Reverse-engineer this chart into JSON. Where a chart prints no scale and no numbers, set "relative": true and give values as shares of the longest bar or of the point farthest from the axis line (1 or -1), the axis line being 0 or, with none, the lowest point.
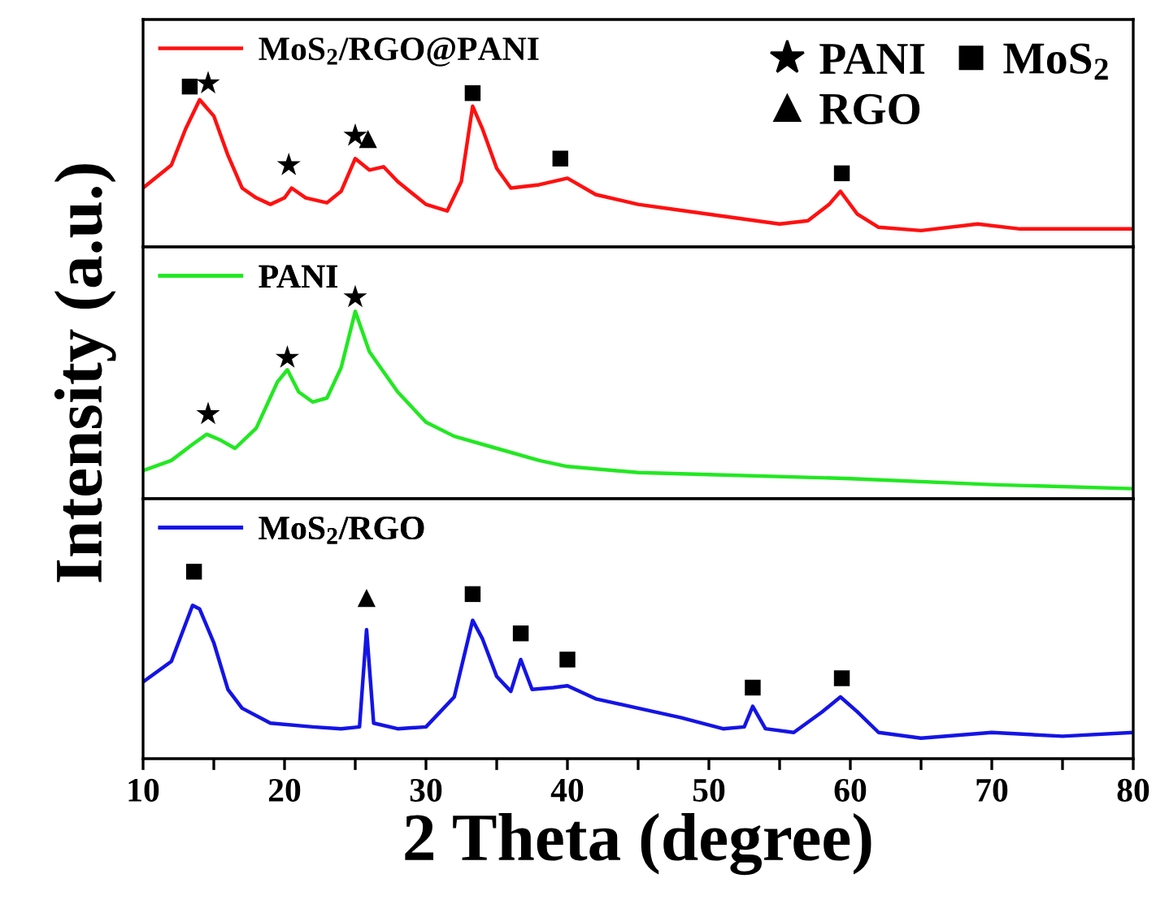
{
  "chart_data": [
    {
      "type": "line",
      "relative": true,
      "xlim": [
        10,
        80
      ],
      "tick_labels": false,
      "legend": "top left",
      "series": [
        {
          "name": "MoS$_{2}$/RGO@PANI",
          "color": "#ff1010",
          "x": [
            10,
            12,
            13,
            14,
            15,
            16,
            17,
            18,
            19,
            20,
            20.5,
            21.5,
            23,
            24,
            25,
            26,
            27,
            28,
            30,
            31.5,
            32.5,
            33.3,
            34,
            35,
            36,
            38,
            40,
            42,
            45,
            50,
            55,
            57,
            58.5,
            59.3,
            60.5,
            62,
            65,
            69,
            72,
            80
          ],
          "values": [
            0.36,
            0.5,
            0.72,
            0.9,
            0.8,
            0.56,
            0.36,
            0.3,
            0.26,
            0.3,
            0.36,
            0.3,
            0.27,
            0.34,
            0.54,
            0.47,
            0.49,
            0.4,
            0.26,
            0.22,
            0.4,
            0.86,
            0.72,
            0.48,
            0.36,
            0.38,
            0.42,
            0.32,
            0.26,
            0.2,
            0.14,
            0.16,
            0.26,
            0.34,
            0.2,
            0.12,
            0.1,
            0.14,
            0.11,
            0.11
          ]
        },
        {
          "type": "scatter",
          "marker": "star",
          "name": "PANI",
          "color": "#000000",
          "x": [
            14.6,
            20.3,
            25
          ],
          "values": [
            1.0,
            0.5,
            0.68
          ]
        },
        {
          "type": "scatter",
          "marker": "triangle",
          "name": "RGO",
          "color": "#000000",
          "x": [
            25.9
          ],
          "values": [
            0.66
          ]
        },
        {
          "type": "scatter",
          "marker": "square",
          "name": "MoS$_{2}$",
          "color": "#000000",
          "x": [
            13.3,
            33.3,
            39.5,
            59.4
          ],
          "values": [
            0.98,
            0.94,
            0.54,
            0.45
          ]
        }
      ]
    },
    {
      "type": "line",
      "relative": true,
      "xlim": [
        10,
        80
      ],
      "tick_labels": false,
      "legend": "top left",
      "ylabel": "Intensity (a.u.)",
      "series": [
        {
          "name": "PANI",
          "color": "#22e822",
          "x": [
            10,
            12,
            13.5,
            14.5,
            15.5,
            16.5,
            18,
            19.5,
            20.2,
            21,
            22,
            23,
            24,
            25,
            26,
            27,
            28,
            30,
            32,
            35,
            38,
            40,
            45,
            50,
            60,
            70,
            80
          ],
          "values": [
            0.14,
            0.19,
            0.27,
            0.32,
            0.29,
            0.25,
            0.35,
            0.58,
            0.64,
            0.53,
            0.48,
            0.5,
            0.65,
            0.93,
            0.73,
            0.63,
            0.53,
            0.38,
            0.31,
            0.25,
            0.19,
            0.16,
            0.13,
            0.12,
            0.1,
            0.07,
            0.05
          ]
        },
        {
          "type": "scatter",
          "marker": "star",
          "color": "#000000",
          "x": [
            14.6,
            20.2,
            25
          ],
          "values": [
            0.42,
            0.7,
            1.0
          ]
        }
      ]
    },
    {
      "type": "line",
      "relative": true,
      "xlim": [
        10,
        80
      ],
      "tick_labels": "x",
      "legend": "top left",
      "xlabel": "2 Theta (degree)",
      "xticks": [
        10,
        {
          "value": 15,
          "label": null
        },
        20,
        {
          "value": 25,
          "label": null
        },
        30,
        {
          "value": 35,
          "label": null
        },
        40,
        {
          "value": 45,
          "label": null
        },
        50,
        {
          "value": 55,
          "label": null
        },
        60,
        {
          "value": 65,
          "label": null
        },
        70,
        {
          "value": 75,
          "label": null
        },
        80
      ],
      "series": [
        {
          "name": "MoS$_{2}$/RGO",
          "color": "#1414e6",
          "x": [
            10,
            12,
            13.5,
            14,
            15,
            16,
            17,
            19,
            22,
            24,
            25.3,
            25.8,
            26.3,
            28,
            30,
            32,
            33.3,
            34,
            35,
            36,
            36.7,
            37.5,
            39,
            40,
            42,
            45,
            48,
            51,
            52.5,
            53.1,
            54,
            56,
            58,
            59.3,
            60.5,
            62,
            65,
            70,
            75,
            80
          ],
          "values": [
            0.41,
            0.52,
            0.82,
            0.8,
            0.62,
            0.37,
            0.27,
            0.19,
            0.17,
            0.16,
            0.17,
            0.69,
            0.19,
            0.16,
            0.17,
            0.33,
            0.74,
            0.64,
            0.44,
            0.36,
            0.53,
            0.37,
            0.38,
            0.39,
            0.32,
            0.27,
            0.22,
            0.16,
            0.17,
            0.28,
            0.16,
            0.14,
            0.25,
            0.33,
            0.25,
            0.14,
            0.11,
            0.14,
            0.12,
            0.14
          ]
        },
        {
          "type": "scatter",
          "marker": "square",
          "color": "#000000",
          "x": [
            13.6,
            33.3,
            36.7,
            40,
            53.1,
            59.4
          ],
          "values": [
            1.0,
            0.88,
            0.67,
            0.53,
            0.38,
            0.43
          ]
        },
        {
          "type": "scatter",
          "marker": "triangle",
          "color": "#000000",
          "x": [
            25.8
          ],
          "values": [
            0.86
          ]
        }
      ]
    }
  ]
}
